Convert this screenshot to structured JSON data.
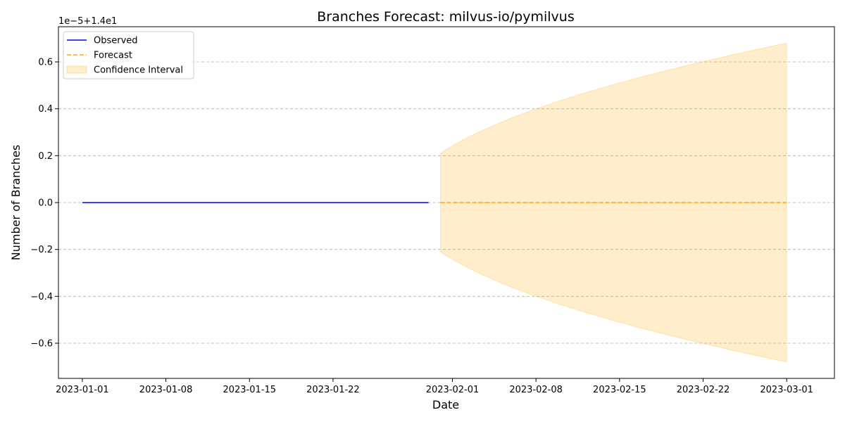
{
  "chart_data": {
    "type": "line",
    "title": "Branches Forecast: milvus-io/pymilvus",
    "xlabel": "Date",
    "ylabel": "Number of Branches",
    "y_offset_label": "1e−5+1.4e1",
    "ylim": [
      -0.75,
      0.75
    ],
    "xlim_days": [
      -2,
      63
    ],
    "grid": "y-dashed",
    "legend_position": "upper-left",
    "x_ticks": [
      {
        "day": 0,
        "label": "2023-01-01"
      },
      {
        "day": 7,
        "label": "2023-01-08"
      },
      {
        "day": 14,
        "label": "2023-01-15"
      },
      {
        "day": 21,
        "label": "2023-01-22"
      },
      {
        "day": 31,
        "label": "2023-02-01"
      },
      {
        "day": 38,
        "label": "2023-02-08"
      },
      {
        "day": 45,
        "label": "2023-02-15"
      },
      {
        "day": 52,
        "label": "2023-02-22"
      },
      {
        "day": 59,
        "label": "2023-03-01"
      }
    ],
    "y_ticks": [
      {
        "value": 0.6,
        "label": "0.6"
      },
      {
        "value": 0.4,
        "label": "0.4"
      },
      {
        "value": 0.2,
        "label": "0.2"
      },
      {
        "value": 0.0,
        "label": "0.0"
      },
      {
        "value": -0.2,
        "label": "−0.2"
      },
      {
        "value": -0.4,
        "label": "−0.4"
      },
      {
        "value": -0.6,
        "label": "−0.6"
      }
    ],
    "series": [
      {
        "name": "Observed",
        "color": "#0000ff",
        "style": "solid",
        "start_date": "2023-01-01",
        "end_date": "2023-01-30",
        "start_day": 0,
        "end_day": 29,
        "value": 0.0
      },
      {
        "name": "Forecast",
        "color": "#ffa500",
        "style": "dashed",
        "start_date": "2023-01-31",
        "end_date": "2023-03-01",
        "start_day": 30,
        "end_day": 59,
        "value": 0.0
      }
    ],
    "confidence_interval": {
      "name": "Confidence Interval",
      "color": "#ffa500",
      "opacity": 0.2,
      "start_day": 30,
      "end_day": 59,
      "half_width_at_start": 0.21,
      "half_width_at_end": 0.68,
      "growth": "sqrt"
    },
    "legend": [
      {
        "label": "Observed",
        "kind": "line",
        "color": "#0000ff"
      },
      {
        "label": "Forecast",
        "kind": "dashed",
        "color": "#ffa500"
      },
      {
        "label": "Confidence Interval",
        "kind": "patch",
        "color": "#ffa500"
      }
    ]
  }
}
